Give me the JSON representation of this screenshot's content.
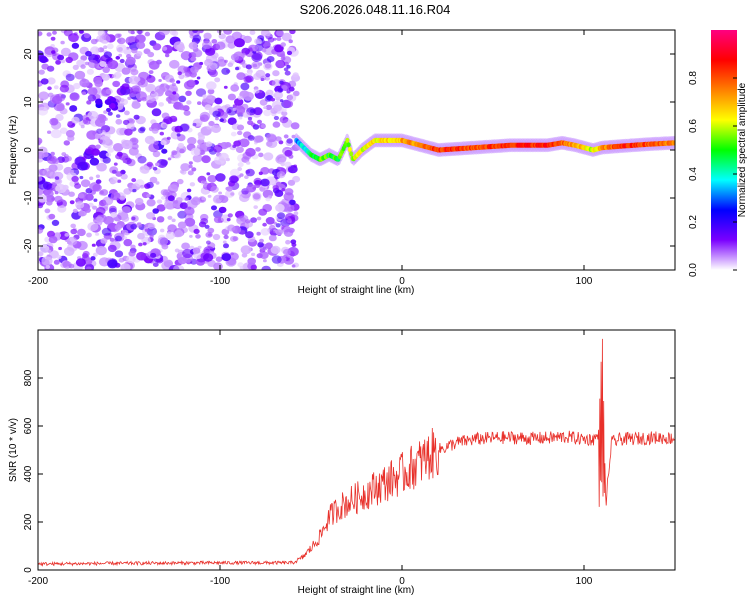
{
  "title": "S206.2026.048.11.16.R04",
  "chart_data": [
    {
      "type": "heatmap",
      "title": "",
      "xlabel": "Height of straight line (km)",
      "ylabel": "Frequency (Hz)",
      "xlim": [
        -200,
        150
      ],
      "ylim": [
        -25,
        25
      ],
      "xticks": [
        -200,
        -100,
        0,
        100
      ],
      "yticks": [
        -20,
        -10,
        0,
        10,
        20
      ],
      "colorbar": {
        "label": "Normalized spectral amplitude",
        "range": [
          0,
          1
        ],
        "ticks": [
          "0.0",
          "0.2",
          "0.4",
          "0.6",
          "0.8"
        ],
        "colors": [
          "#ffffff",
          "#7a00ff",
          "#0000ff",
          "#00ffff",
          "#00ff00",
          "#ffff00",
          "#ff8000",
          "#ff0000",
          "#ff0080"
        ]
      },
      "noise_region_x": [
        -200,
        -58
      ],
      "signal_trace": {
        "x": [
          -58,
          -50,
          -45,
          -40,
          -35,
          -30,
          -27,
          -22,
          -15,
          -8,
          0,
          10,
          20,
          40,
          60,
          80,
          88,
          95,
          105,
          110,
          120,
          135,
          150
        ],
        "y": [
          2,
          -1,
          -2,
          -1,
          -2,
          2,
          -2,
          0,
          2,
          2,
          2,
          1,
          0,
          0.5,
          1,
          1,
          1.5,
          1,
          0,
          0.5,
          0.8,
          1.2,
          1.5
        ],
        "amplitude": [
          0.3,
          0.45,
          0.55,
          0.5,
          0.5,
          0.55,
          0.6,
          0.6,
          0.65,
          0.65,
          0.7,
          0.75,
          0.85,
          0.8,
          0.85,
          0.85,
          0.8,
          0.7,
          0.6,
          0.7,
          0.85,
          0.8,
          0.75
        ]
      }
    },
    {
      "type": "line",
      "title": "",
      "xlabel": "Height of straight line (km)",
      "ylabel": "SNR (10 * v/v)",
      "xlim": [
        -200,
        150
      ],
      "ylim": [
        0,
        1000
      ],
      "xticks": [
        -200,
        -100,
        0,
        100
      ],
      "yticks": [
        0,
        200,
        400,
        600,
        800
      ],
      "series": [
        {
          "name": "SNR",
          "color": "#e8302a",
          "x": [
            -200,
            -150,
            -100,
            -60,
            -55,
            -50,
            -45,
            -40,
            -35,
            -30,
            -25,
            -20,
            -15,
            -10,
            -5,
            0,
            10,
            20,
            30,
            40,
            50,
            60,
            70,
            80,
            90,
            100,
            105,
            108,
            110,
            112,
            115,
            120,
            130,
            140,
            150
          ],
          "y": [
            25,
            28,
            30,
            30,
            50,
            90,
            140,
            220,
            260,
            280,
            300,
            320,
            340,
            360,
            380,
            400,
            450,
            500,
            530,
            545,
            550,
            552,
            548,
            550,
            555,
            545,
            545,
            560,
            1000,
            260,
            530,
            545,
            548,
            552,
            548
          ]
        }
      ]
    }
  ]
}
